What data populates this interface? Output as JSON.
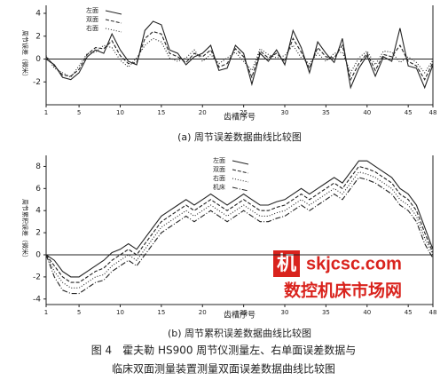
{
  "chart_data": [
    {
      "type": "line",
      "title": "(a) 周节误差数据曲线比较图",
      "x_label": "齿槽序号",
      "y_label": "周节误差（微米）",
      "x": [
        1,
        2,
        3,
        4,
        5,
        6,
        7,
        8,
        9,
        10,
        11,
        12,
        13,
        14,
        15,
        16,
        17,
        18,
        19,
        20,
        21,
        22,
        23,
        24,
        25,
        26,
        27,
        28,
        29,
        30,
        31,
        32,
        33,
        34,
        35,
        36,
        37,
        38,
        39,
        40,
        41,
        42,
        43,
        44,
        45,
        46,
        47,
        48
      ],
      "series": [
        {
          "name": "左面",
          "color": "#222",
          "values": [
            0,
            -0.5,
            -1.6,
            -1.8,
            -1.2,
            0.2,
            0.8,
            0.5,
            2.2,
            0.8,
            -0.2,
            -0.5,
            2.5,
            3.3,
            3.0,
            0.8,
            0.5,
            -0.5,
            0.2,
            0.5,
            1.2,
            -1.0,
            -0.8,
            1.2,
            0.5,
            -2.2,
            0.5,
            -0.2,
            0.8,
            -0.5,
            2.5,
            1.0,
            -1.2,
            1.5,
            0.5,
            -0.3,
            1.8,
            -2.5,
            -0.8,
            0.3,
            -1.5,
            0.2,
            -0.2,
            2.7,
            -0.6,
            -0.8,
            -2.5,
            -0.5
          ]
        },
        {
          "name": "双面",
          "color": "#222",
          "values": [
            0.2,
            -0.6,
            -1.4,
            -1.5,
            -0.9,
            0.4,
            1.0,
            0.9,
            1.6,
            0.3,
            -0.4,
            -0.3,
            1.8,
            2.4,
            2.2,
            0.5,
            0.2,
            -0.3,
            0.5,
            0.2,
            0.8,
            -0.7,
            -0.4,
            0.9,
            0.2,
            -1.6,
            0.7,
            0.1,
            0.5,
            -0.2,
            1.8,
            0.6,
            -0.8,
            1.0,
            0.2,
            0.1,
            1.2,
            -1.8,
            -0.4,
            0.5,
            -1.0,
            0.4,
            0.2,
            1.2,
            -0.2,
            -0.6,
            -1.8,
            -0.3
          ]
        },
        {
          "name": "右面",
          "color": "#222",
          "values": [
            0.3,
            -0.8,
            -1.2,
            -1.6,
            -0.6,
            0.5,
            0.6,
            1.2,
            1.0,
            -0.1,
            -0.7,
            0.1,
            1.2,
            1.8,
            1.5,
            0.1,
            -0.2,
            0.1,
            0.8,
            -0.2,
            0.4,
            -0.4,
            0.1,
            0.6,
            -0.2,
            -1.0,
            0.9,
            0.4,
            0.1,
            0.3,
            1.2,
            0.1,
            -0.4,
            0.5,
            -0.2,
            0.5,
            0.6,
            -1.2,
            0.1,
            0.7,
            -0.5,
            0.7,
            0.6,
            -0.3,
            0.2,
            -0.3,
            -1.2,
            -0.1
          ]
        }
      ],
      "xlim": [
        1,
        48
      ],
      "xticks": [
        1,
        5,
        10,
        15,
        20,
        25,
        30,
        35,
        40,
        45,
        48
      ],
      "ylim": [
        -4,
        4.7
      ],
      "yticks": [
        -2,
        0,
        2,
        4
      ],
      "legend": "top-left",
      "zero_line": true
    },
    {
      "type": "line",
      "title": "(b) 周节累积误差数据曲线比较图",
      "x_label": "齿槽序号",
      "y_label": "周节累积误差（微米）",
      "x": [
        1,
        2,
        3,
        4,
        5,
        6,
        7,
        8,
        9,
        10,
        11,
        12,
        13,
        14,
        15,
        16,
        17,
        18,
        19,
        20,
        21,
        22,
        23,
        24,
        25,
        26,
        27,
        28,
        29,
        30,
        31,
        32,
        33,
        34,
        35,
        36,
        37,
        38,
        39,
        40,
        41,
        42,
        43,
        44,
        45,
        46,
        47,
        48
      ],
      "series": [
        {
          "name": "左面",
          "color": "#222",
          "values": [
            0,
            -0.5,
            -1.5,
            -2.0,
            -2.0,
            -1.5,
            -1.0,
            -0.5,
            0.2,
            0.5,
            1.0,
            0.5,
            1.5,
            2.5,
            3.5,
            4.0,
            4.5,
            5.0,
            4.5,
            5.0,
            5.5,
            5.0,
            4.5,
            5.0,
            5.5,
            5.0,
            4.5,
            4.5,
            4.8,
            5.0,
            5.5,
            6.0,
            5.5,
            6.0,
            6.5,
            7.0,
            6.5,
            7.5,
            8.5,
            8.5,
            8.0,
            7.5,
            7.0,
            6.0,
            5.5,
            4.5,
            2.5,
            0.5
          ]
        },
        {
          "name": "双面",
          "color": "#222",
          "values": [
            0,
            -1.0,
            -2.0,
            -2.5,
            -2.5,
            -2.0,
            -1.5,
            -1.2,
            -0.5,
            0,
            0.5,
            0,
            1.0,
            2.0,
            3.0,
            3.5,
            4.0,
            4.5,
            4.0,
            4.5,
            5.0,
            4.5,
            4.0,
            4.5,
            5.0,
            4.5,
            4.0,
            4.0,
            4.3,
            4.5,
            5.0,
            5.5,
            5.0,
            5.5,
            6.0,
            6.5,
            6.0,
            7.0,
            8.0,
            7.8,
            7.5,
            7.0,
            6.5,
            5.5,
            5.0,
            4.0,
            2.0,
            0.2
          ]
        },
        {
          "name": "右面",
          "color": "#222",
          "values": [
            0,
            -1.5,
            -2.5,
            -3.0,
            -3.0,
            -2.5,
            -2.0,
            -1.8,
            -1.0,
            -0.5,
            0,
            -0.5,
            0.5,
            1.5,
            2.5,
            3.0,
            3.5,
            4.0,
            3.5,
            4.0,
            4.5,
            4.0,
            3.5,
            4.0,
            4.5,
            4.0,
            3.5,
            3.5,
            3.8,
            4.0,
            4.5,
            5.0,
            4.5,
            5.0,
            5.5,
            6.0,
            5.5,
            6.5,
            7.5,
            7.3,
            7.0,
            6.5,
            6.0,
            5.0,
            4.5,
            3.5,
            1.5,
            0
          ]
        },
        {
          "name": "机床",
          "color": "#222",
          "values": [
            0,
            -2.0,
            -3.2,
            -3.5,
            -3.5,
            -3.0,
            -2.5,
            -2.3,
            -1.5,
            -1.0,
            -0.5,
            -1.0,
            0,
            1.0,
            2.0,
            2.5,
            3.0,
            3.5,
            3.0,
            3.5,
            4.0,
            3.5,
            3.0,
            3.5,
            4.0,
            3.5,
            3.0,
            3.0,
            3.3,
            3.5,
            4.0,
            4.5,
            4.0,
            4.5,
            5.0,
            5.5,
            5.0,
            6.0,
            7.0,
            6.8,
            6.5,
            6.0,
            5.5,
            4.5,
            4.0,
            3.0,
            1.0,
            -0.3
          ]
        }
      ],
      "xlim": [
        1,
        48
      ],
      "xticks": [
        1,
        5,
        10,
        15,
        20,
        25,
        30,
        35,
        40,
        45,
        48
      ],
      "ylim": [
        -4.5,
        9
      ],
      "yticks": [
        -4,
        -2,
        0,
        2,
        4,
        6,
        8
      ],
      "legend": "top-center",
      "zero_line": true
    }
  ],
  "caption": [
    "图 4　霍夫勒 HS900 周节仪测量左、右单面误差数据与",
    "临床双面测量装置测量双面误差数据曲线比较图"
  ],
  "watermark": {
    "logo": "机",
    "site": "skjcsc.com",
    "name": "数控机床市场网"
  }
}
